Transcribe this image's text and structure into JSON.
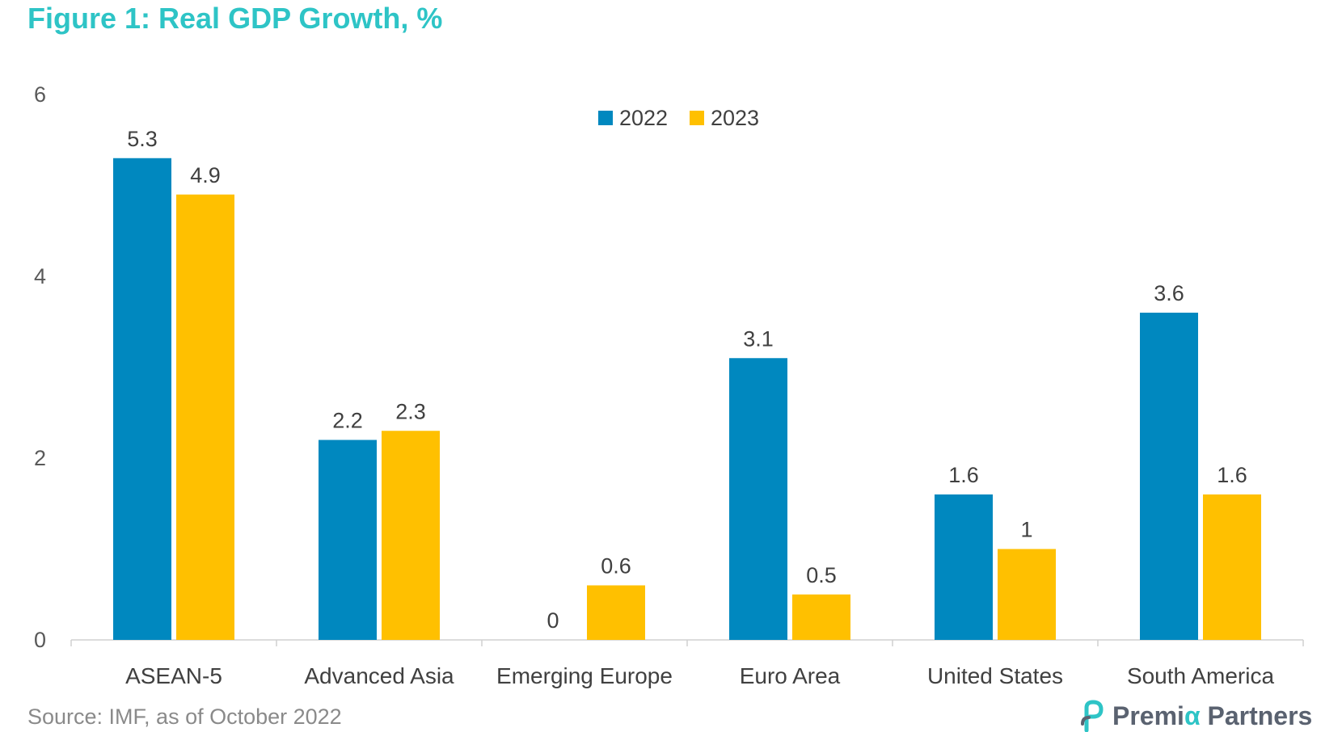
{
  "header": {
    "title": "Figure 1: Real GDP Growth, %"
  },
  "footer": {
    "source": "Source: IMF, as of October 2022"
  },
  "brand": {
    "name_part1": "Premi",
    "name_alpha": "α",
    "name_part2": " Partners",
    "icon": "premia-logo-icon"
  },
  "colors": {
    "series_2022": "#0088bf",
    "series_2023": "#ffc000",
    "title": "#2ec4c6"
  },
  "chart_data": {
    "type": "bar",
    "title": "Figure 1: Real GDP Growth, %",
    "xlabel": "",
    "ylabel": "",
    "categories": [
      "ASEAN-5",
      "Advanced Asia",
      "Emerging Europe",
      "Euro Area",
      "United States",
      "South America"
    ],
    "series": [
      {
        "name": "2022",
        "values": [
          5.3,
          2.2,
          0,
          3.1,
          1.6,
          3.6
        ],
        "labels": [
          "5.3",
          "2.2",
          "0",
          "3.1",
          "1.6",
          "3.6"
        ]
      },
      {
        "name": "2023",
        "values": [
          4.9,
          2.3,
          0.6,
          0.5,
          1.0,
          1.6
        ],
        "labels": [
          "4.9",
          "2.3",
          "0.6",
          "0.5",
          "1",
          "1.6"
        ]
      }
    ],
    "ylim": [
      0,
      6
    ],
    "yticks": [
      "0",
      "2",
      "4",
      "6"
    ],
    "grid": false,
    "legend": "top-center"
  }
}
